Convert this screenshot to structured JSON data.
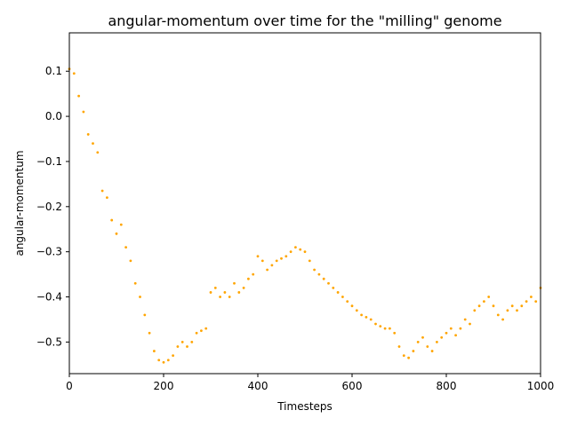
{
  "chart_data": {
    "type": "scatter",
    "title": "angular-momentum over time for the \"milling\" genome",
    "xlabel": "Timesteps",
    "ylabel": "angular-momentum",
    "xlim": [
      0,
      1000
    ],
    "ylim": [
      -0.57,
      0.185
    ],
    "x_ticks": [
      0,
      200,
      400,
      600,
      800,
      1000
    ],
    "y_ticks": [
      0.1,
      0.0,
      -0.1,
      -0.2,
      -0.3,
      -0.4,
      -0.5
    ],
    "x_tick_labels": [
      "0",
      "200",
      "400",
      "600",
      "800",
      "1000"
    ],
    "y_tick_labels": [
      "0.1",
      "0.0",
      "−0.1",
      "−0.2",
      "−0.3",
      "−0.4",
      "−0.5"
    ],
    "grid": false,
    "marker_color": "#FFA500",
    "series": [
      {
        "x": [
          0,
          10,
          20,
          30,
          40,
          50,
          60,
          70,
          80,
          90,
          100,
          110,
          120,
          130,
          140,
          150,
          160,
          170,
          180,
          190,
          200,
          210,
          220,
          230,
          240,
          250,
          260,
          270,
          280,
          290,
          300,
          310,
          320,
          330,
          340,
          350,
          360,
          370,
          380,
          390,
          400,
          410,
          420,
          430,
          440,
          450,
          460,
          470,
          480,
          490,
          500,
          510,
          520,
          530,
          540,
          550,
          560,
          570,
          580,
          590,
          600,
          610,
          620,
          630,
          640,
          650,
          660,
          670,
          680,
          690,
          700,
          710,
          720,
          730,
          740,
          750,
          760,
          770,
          780,
          790,
          800,
          810,
          820,
          830,
          840,
          850,
          860,
          870,
          880,
          890,
          900,
          910,
          920,
          930,
          940,
          950,
          960,
          970,
          980,
          990,
          1000
        ],
        "y": [
          0.105,
          0.095,
          0.045,
          0.01,
          -0.04,
          -0.06,
          -0.08,
          -0.165,
          -0.18,
          -0.23,
          -0.26,
          -0.24,
          -0.29,
          -0.32,
          -0.37,
          -0.4,
          -0.44,
          -0.48,
          -0.52,
          -0.54,
          -0.545,
          -0.54,
          -0.53,
          -0.51,
          -0.5,
          -0.51,
          -0.5,
          -0.48,
          -0.475,
          -0.47,
          -0.39,
          -0.38,
          -0.4,
          -0.39,
          -0.4,
          -0.37,
          -0.39,
          -0.38,
          -0.36,
          -0.35,
          -0.31,
          -0.32,
          -0.34,
          -0.33,
          -0.32,
          -0.315,
          -0.31,
          -0.3,
          -0.29,
          -0.295,
          -0.3,
          -0.32,
          -0.34,
          -0.35,
          -0.36,
          -0.37,
          -0.38,
          -0.39,
          -0.4,
          -0.41,
          -0.42,
          -0.43,
          -0.44,
          -0.445,
          -0.45,
          -0.46,
          -0.465,
          -0.47,
          -0.47,
          -0.48,
          -0.51,
          -0.53,
          -0.535,
          -0.52,
          -0.5,
          -0.49,
          -0.51,
          -0.52,
          -0.5,
          -0.49,
          -0.48,
          -0.47,
          -0.485,
          -0.47,
          -0.45,
          -0.46,
          -0.43,
          -0.42,
          -0.41,
          -0.4,
          -0.42,
          -0.44,
          -0.45,
          -0.43,
          -0.42,
          -0.43,
          -0.42,
          -0.41,
          -0.4,
          -0.41,
          -0.38
        ]
      }
    ]
  }
}
